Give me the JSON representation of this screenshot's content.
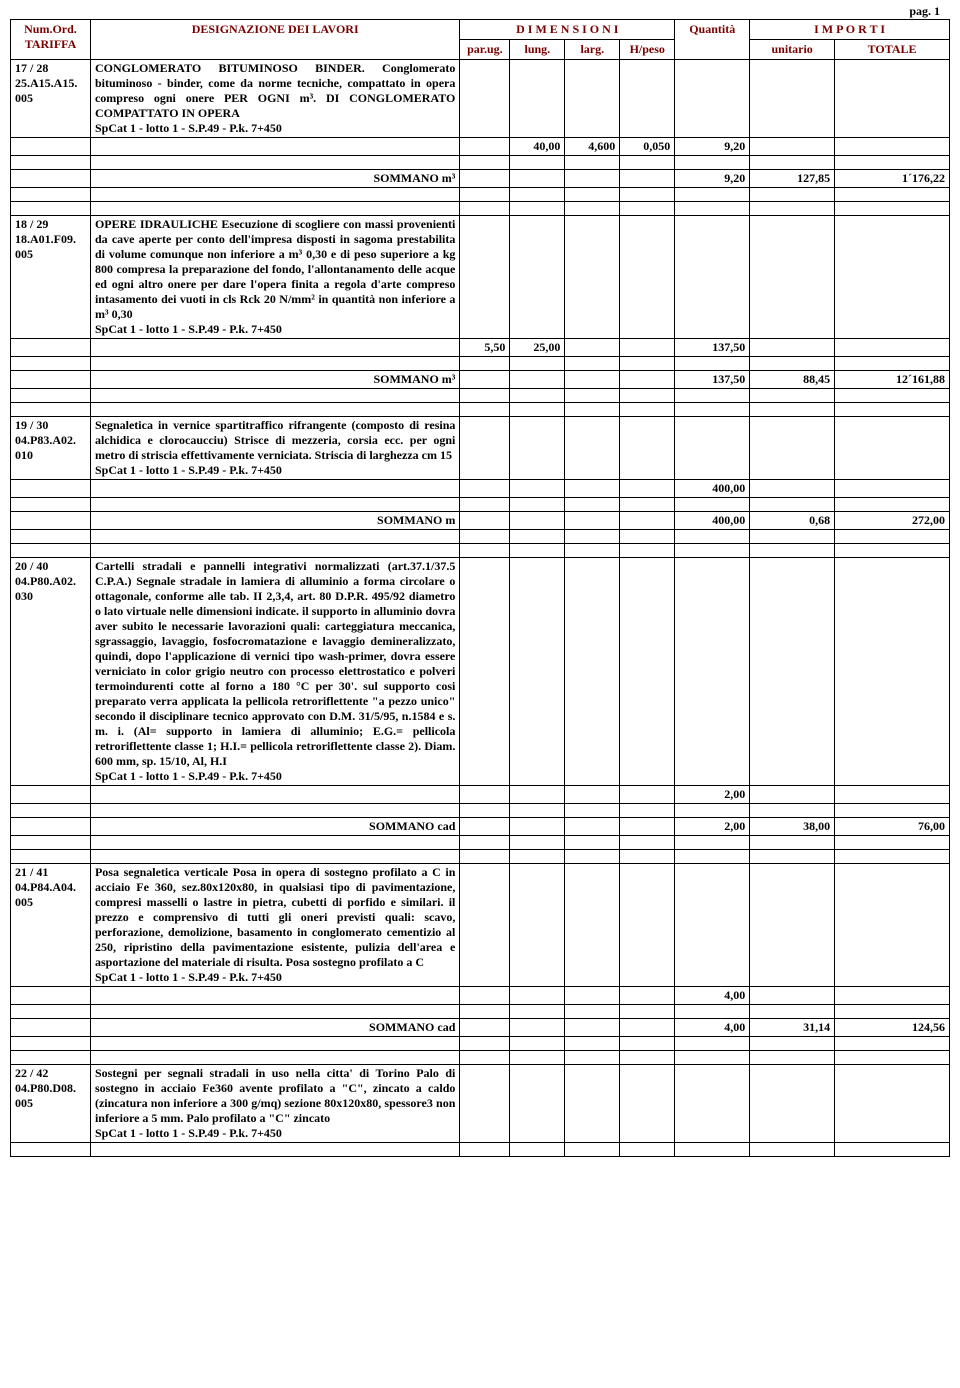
{
  "page_label": "pag. 1",
  "headers": {
    "tariffa_l1": "Num.Ord.",
    "tariffa_l2": "TARIFFA",
    "designazione": "DESIGNAZIONE DEI LAVORI",
    "dimensioni": "D I M E N S I O N I",
    "quantita": "Quantità",
    "importi": "I M P O R T I",
    "parug": "par.ug.",
    "lung": "lung.",
    "larg": "larg.",
    "hpeso": "H/peso",
    "unitario": "unitario",
    "totale": "TOTALE"
  },
  "rows": [
    {
      "tariffa": "17 / 28\n25.A15.A15.\n005",
      "desc": "CONGLOMERATO BITUMINOSO BINDER. Conglomerato bituminoso - binder, come da norme tecniche, compattato in opera compreso ogni onere PER OGNI m³. DI CONGLOMERATO COMPATTATO IN OPERA\nSpCat 1 - lotto 1 - S.P.49 - P.k. 7+450",
      "dims": {
        "parug": "",
        "lung": "40,00",
        "larg": "4,600",
        "hpeso": "0,050",
        "qta": "9,20"
      },
      "sommano": {
        "label": "SOMMANO m³",
        "qta": "9,20",
        "unit": "127,85",
        "tot": "1´176,22"
      }
    },
    {
      "tariffa": "18 / 29\n18.A01.F09.\n005",
      "desc": "OPERE IDRAULICHE Esecuzione di scogliere con massi provenienti da cave aperte per conto dell'impresa disposti in sagoma prestabilita di volume comunque non inferiore a m³ 0,30 e di peso superiore a kg 800 compresa la preparazione del fondo, l'allontanamento delle acque ed ogni altro onere per dare l'opera finita a regola d'arte compreso intasamento dei vuoti in cls Rck 20 N/mm² in quantità non inferiore a m³ 0,30\nSpCat 1 - lotto 1 - S.P.49 - P.k. 7+450",
      "dims": {
        "parug": "5,50",
        "lung": "25,00",
        "larg": "",
        "hpeso": "",
        "qta": "137,50"
      },
      "sommano": {
        "label": "SOMMANO m³",
        "qta": "137,50",
        "unit": "88,45",
        "tot": "12´161,88"
      }
    },
    {
      "tariffa": "19 / 30\n04.P83.A02.\n010",
      "desc": "Segnaletica in vernice spartitraffico rifrangente (composto di resina alchidica e clorocaucciu) Strisce di mezzeria, corsia ecc. per ogni metro di striscia effettivamente verniciata. Striscia di larghezza cm 15\nSpCat 1 - lotto 1 - S.P.49 - P.k. 7+450",
      "dims": {
        "parug": "",
        "lung": "",
        "larg": "",
        "hpeso": "",
        "qta": "400,00"
      },
      "sommano": {
        "label": "SOMMANO m",
        "qta": "400,00",
        "unit": "0,68",
        "tot": "272,00"
      }
    },
    {
      "tariffa": "20 / 40\n04.P80.A02.\n030",
      "desc": "Cartelli stradali e pannelli integrativi normalizzati (art.37.1/37.5 C.P.A.) Segnale stradale in lamiera di alluminio a forma circolare o ottagonale, conforme alle tab. II 2,3,4, art. 80 D.P.R. 495/92 diametro o lato virtuale nelle dimensioni indicate. il supporto in alluminio dovra aver subito le necessarie lavorazioni quali: carteggiatura meccanica, sgrassaggio, lavaggio, fosfocromatazione e lavaggio demineralizzato, quindi, dopo l'applicazione di vernici tipo wash-primer, dovra essere verniciato in color grigio neutro con processo elettrostatico e polveri termoindurenti cotte al forno a 180 °C per 30'. sul supporto cosi preparato verra applicata la pellicola retroriflettente \"a pezzo unico\" secondo il disciplinare tecnico approvato con D.M. 31/5/95, n.1584 e s. m. i. (Al= supporto in lamiera di alluminio; E.G.= pellicola retroriflettente classe 1; H.I.= pellicola retroriflettente classe 2). Diam. 600 mm, sp. 15/10, Al, H.I\nSpCat 1 - lotto 1 - S.P.49 - P.k. 7+450",
      "dims": {
        "parug": "",
        "lung": "",
        "larg": "",
        "hpeso": "",
        "qta": "2,00"
      },
      "sommano": {
        "label": "SOMMANO cad",
        "qta": "2,00",
        "unit": "38,00",
        "tot": "76,00"
      }
    },
    {
      "tariffa": "21 / 41\n04.P84.A04.\n005",
      "desc": "Posa segnaletica verticale Posa in opera di sostegno profilato a C in acciaio Fe 360, sez.80x120x80, in qualsiasi tipo di pavimentazione, compresi masselli o lastre in pietra, cubetti di porfido e similari. il prezzo e comprensivo di tutti gli oneri previsti quali: scavo, perforazione, demolizione, basamento in conglomerato cementizio al 250, ripristino della pavimentazione esistente, pulizia dell'area e asportazione del materiale di risulta. Posa sostegno profilato a C\nSpCat 1 - lotto 1 - S.P.49 - P.k. 7+450",
      "dims": {
        "parug": "",
        "lung": "",
        "larg": "",
        "hpeso": "",
        "qta": "4,00"
      },
      "sommano": {
        "label": "SOMMANO cad",
        "qta": "4,00",
        "unit": "31,14",
        "tot": "124,56"
      }
    },
    {
      "tariffa": "22 / 42\n04.P80.D08.\n005",
      "desc": "Sostegni per segnali stradali in uso nella citta' di Torino Palo di sostegno in acciaio Fe360 avente profilato a \"C\", zincato a caldo (zincatura non inferiore a 300 g/mq) sezione 80x120x80, spessore3 non inferiore a 5 mm. Palo profilato a \"C\" zincato\nSpCat 1 - lotto 1 - S.P.49 - P.k. 7+450",
      "dims": null,
      "sommano": null
    }
  ],
  "colors": {
    "red": "#7a0000",
    "blue": "#003399",
    "border": "#000000",
    "bg": "#ffffff"
  }
}
